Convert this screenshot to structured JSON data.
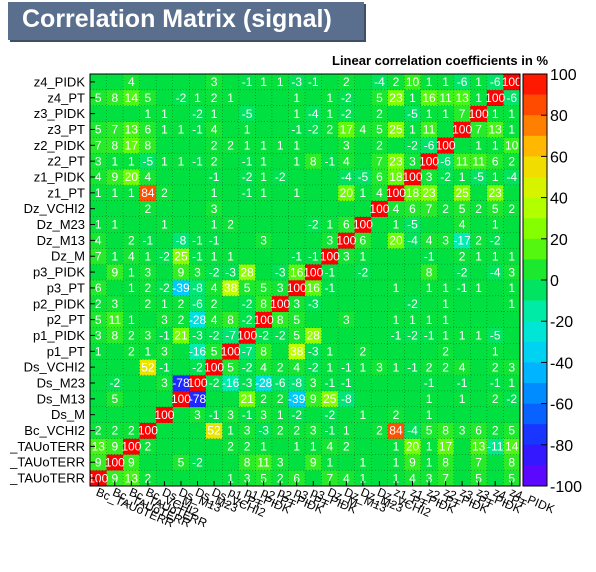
{
  "title": "Correlation Matrix (signal)",
  "subtitle": "Linear correlation coefficients in %",
  "chart_data": {
    "type": "heatmap",
    "title": "Correlation Matrix (signal)",
    "subtitle": "Linear correlation coefficients in %",
    "variables": [
      "Bc_TAUoTERR",
      "Bc_TAUoTERR",
      "Bc_TAUoTERR",
      "Bc_VCHI2",
      "Ds_M",
      "Ds_M13",
      "Ds_M23",
      "Ds_VCHI2",
      "p1_PT",
      "p1_PIDK",
      "p2_PT",
      "p2_PIDK",
      "p3_PT",
      "p3_PIDK",
      "Dz_M",
      "Dz_M13",
      "Dz_M23",
      "Dz_VCHI2",
      "z1_PT",
      "z1_PIDK",
      "z2_PT",
      "z2_PIDK",
      "z3_PT",
      "z3_PIDK",
      "z4_PT",
      "z4_PIDK"
    ],
    "y_labels_visible": [
      "_TAUoTERR",
      "_TAUoTERR",
      "_TAUoTERR",
      "Bc_VCHI2",
      "Ds_M",
      "Ds_M13",
      "Ds_M23",
      "Ds_VCHI2",
      "p1_PT",
      "p1_PIDK",
      "p2_PT",
      "p2_PIDK",
      "p3_PT",
      "p3_PIDK",
      "Dz_M",
      "Dz_M13",
      "Dz_M23",
      "Dz_VCHI2",
      "z1_PT",
      "z1_PIDK",
      "z2_PT",
      "z2_PIDK",
      "z3_PT",
      "z3_PIDK",
      "z4_PT",
      "z4_PIDK"
    ],
    "x_labels_visible": [
      "Bc_TAUoTERR",
      "Bc_TAUoTERR",
      "Bc_TAUoTERR",
      "Bc_VCHI2",
      "Ds_M",
      "Ds_M13",
      "Ds_M23",
      "Ds_VCHI2",
      "p1_PT",
      "p1_PIDK",
      "p2_PT",
      "p2_PIDK",
      "p3_PT",
      "p3_PIDK",
      "Dz_M",
      "Dz_M13",
      "Dz_M23",
      "Dz_VCHI2",
      "z1_PT",
      "z1_PIDK",
      "z2_PT",
      "z2_PIDK",
      "z3_PT",
      "z3_PIDK",
      "z4_PT",
      "z4_PIDK"
    ],
    "zlim": [
      -100,
      100
    ],
    "colorbar_ticks": [
      -100,
      -80,
      -60,
      -40,
      -20,
      0,
      20,
      40,
      60,
      80,
      100
    ],
    "grid": true,
    "rows_from_bottom": [
      [
        100,
        9,
        13,
        2,
        0,
        0,
        0,
        0,
        1,
        3,
        5,
        2,
        6,
        0,
        7,
        4,
        1,
        0,
        1,
        4,
        3,
        7,
        0,
        5,
        0,
        5
      ],
      [
        9,
        100,
        9,
        0,
        0,
        5,
        -2,
        0,
        0,
        8,
        11,
        3,
        0,
        9,
        1,
        0,
        1,
        0,
        1,
        9,
        1,
        8,
        0,
        7,
        0,
        8
      ],
      [
        13,
        9,
        100,
        2,
        0,
        0,
        0,
        0,
        2,
        2,
        1,
        0,
        1,
        1,
        4,
        2,
        0,
        0,
        1,
        20,
        1,
        17,
        0,
        13,
        -11,
        14
      ],
      [
        2,
        2,
        2,
        100,
        0,
        0,
        0,
        52,
        1,
        3,
        -3,
        2,
        2,
        3,
        -1,
        1,
        0,
        2,
        84,
        -4,
        5,
        8,
        3,
        6,
        2,
        5
      ],
      [
        0,
        0,
        0,
        0,
        100,
        0,
        3,
        -1,
        3,
        -1,
        3,
        1,
        -2,
        0,
        -2,
        0,
        1,
        0,
        2,
        0,
        1,
        0,
        0,
        0,
        0,
        0
      ],
      [
        0,
        5,
        0,
        0,
        0,
        100,
        -78,
        0,
        0,
        21,
        2,
        2,
        -39,
        9,
        25,
        -8,
        0,
        0,
        0,
        0,
        1,
        0,
        1,
        0,
        2,
        -2
      ],
      [
        0,
        -2,
        0,
        0,
        3,
        -78,
        100,
        -2,
        -16,
        -3,
        -28,
        -6,
        -8,
        3,
        -1,
        -1,
        0,
        0,
        0,
        0,
        -1,
        0,
        -1,
        0,
        -1,
        1
      ],
      [
        0,
        0,
        0,
        52,
        -1,
        0,
        -2,
        100,
        5,
        -2,
        4,
        2,
        4,
        -2,
        1,
        -1,
        1,
        3,
        1,
        -1,
        2,
        2,
        4,
        0,
        2,
        3
      ],
      [
        1,
        0,
        2,
        1,
        3,
        0,
        -16,
        5,
        100,
        -7,
        8,
        0,
        38,
        -3,
        1,
        0,
        2,
        0,
        0,
        0,
        0,
        2,
        0,
        0,
        1,
        0
      ],
      [
        3,
        8,
        2,
        3,
        -1,
        21,
        -3,
        -2,
        -7,
        100,
        -2,
        -2,
        5,
        28,
        0,
        0,
        0,
        0,
        -1,
        -2,
        -1,
        1,
        1,
        1,
        -5,
        0
      ],
      [
        5,
        11,
        1,
        0,
        3,
        2,
        -28,
        4,
        8,
        -2,
        100,
        8,
        5,
        0,
        0,
        3,
        0,
        0,
        1,
        1,
        1,
        1,
        0,
        0,
        0,
        0
      ],
      [
        2,
        3,
        0,
        2,
        1,
        2,
        -6,
        2,
        0,
        -2,
        8,
        100,
        3,
        -3,
        0,
        0,
        0,
        0,
        0,
        -2,
        0,
        1,
        0,
        0,
        0,
        1
      ],
      [
        6,
        0,
        1,
        2,
        -2,
        -39,
        -8,
        4,
        38,
        5,
        5,
        3,
        100,
        16,
        -1,
        0,
        0,
        0,
        1,
        0,
        1,
        1,
        -1,
        1,
        0,
        1
      ],
      [
        0,
        9,
        1,
        3,
        0,
        9,
        3,
        -2,
        -3,
        28,
        0,
        -3,
        16,
        100,
        -1,
        0,
        -2,
        0,
        0,
        0,
        8,
        0,
        -2,
        0,
        -4,
        3
      ],
      [
        7,
        1,
        4,
        1,
        -2,
        25,
        -1,
        1,
        1,
        0,
        0,
        0,
        -1,
        -1,
        100,
        3,
        1,
        0,
        0,
        0,
        -1,
        0,
        2,
        1,
        1,
        1
      ],
      [
        4,
        0,
        2,
        -1,
        0,
        -8,
        -1,
        -1,
        0,
        0,
        3,
        0,
        0,
        0,
        3,
        100,
        6,
        0,
        20,
        -4,
        4,
        3,
        -17,
        2,
        -2,
        0
      ],
      [
        1,
        1,
        0,
        0,
        1,
        0,
        0,
        1,
        2,
        0,
        0,
        0,
        0,
        -2,
        1,
        6,
        100,
        0,
        1,
        -5,
        0,
        0,
        4,
        0,
        1,
        0
      ],
      [
        0,
        0,
        0,
        2,
        0,
        0,
        0,
        3,
        0,
        0,
        0,
        0,
        0,
        0,
        0,
        0,
        0,
        100,
        4,
        6,
        7,
        2,
        5,
        2,
        5,
        2
      ],
      [
        1,
        1,
        1,
        84,
        2,
        0,
        0,
        1,
        0,
        -1,
        1,
        0,
        1,
        0,
        0,
        20,
        1,
        4,
        100,
        18,
        23,
        0,
        25,
        0,
        23,
        0
      ],
      [
        4,
        9,
        20,
        4,
        0,
        0,
        0,
        -1,
        0,
        -2,
        1,
        -2,
        0,
        0,
        0,
        -4,
        -5,
        6,
        18,
        100,
        3,
        -2,
        1,
        -5,
        1,
        -4
      ],
      [
        3,
        1,
        1,
        -5,
        1,
        1,
        -1,
        2,
        0,
        -1,
        1,
        0,
        1,
        8,
        -1,
        4,
        0,
        7,
        23,
        3,
        100,
        -6,
        11,
        11,
        6,
        2
      ],
      [
        7,
        8,
        17,
        8,
        0,
        0,
        0,
        2,
        2,
        1,
        1,
        1,
        1,
        0,
        0,
        3,
        0,
        2,
        0,
        -2,
        -6,
        100,
        0,
        1,
        1,
        10
      ],
      [
        5,
        7,
        13,
        6,
        1,
        1,
        -1,
        4,
        0,
        1,
        0,
        0,
        -1,
        -2,
        2,
        17,
        4,
        5,
        25,
        1,
        11,
        0,
        100,
        7,
        13,
        1
      ],
      [
        0,
        0,
        0,
        1,
        1,
        0,
        -2,
        1,
        0,
        -5,
        0,
        0,
        1,
        -4,
        1,
        -2,
        0,
        2,
        0,
        -5,
        1,
        1,
        7,
        100,
        1,
        1
      ],
      [
        5,
        8,
        14,
        5,
        0,
        -2,
        1,
        2,
        1,
        0,
        0,
        0,
        1,
        0,
        1,
        -2,
        0,
        5,
        23,
        1,
        16,
        11,
        13,
        1,
        100,
        -6
      ],
      [
        0,
        0,
        4,
        0,
        0,
        0,
        0,
        3,
        0,
        -1,
        1,
        1,
        -3,
        -1,
        0,
        2,
        0,
        -4,
        2,
        10,
        1,
        1,
        -6,
        1,
        -6,
        100
      ]
    ]
  }
}
